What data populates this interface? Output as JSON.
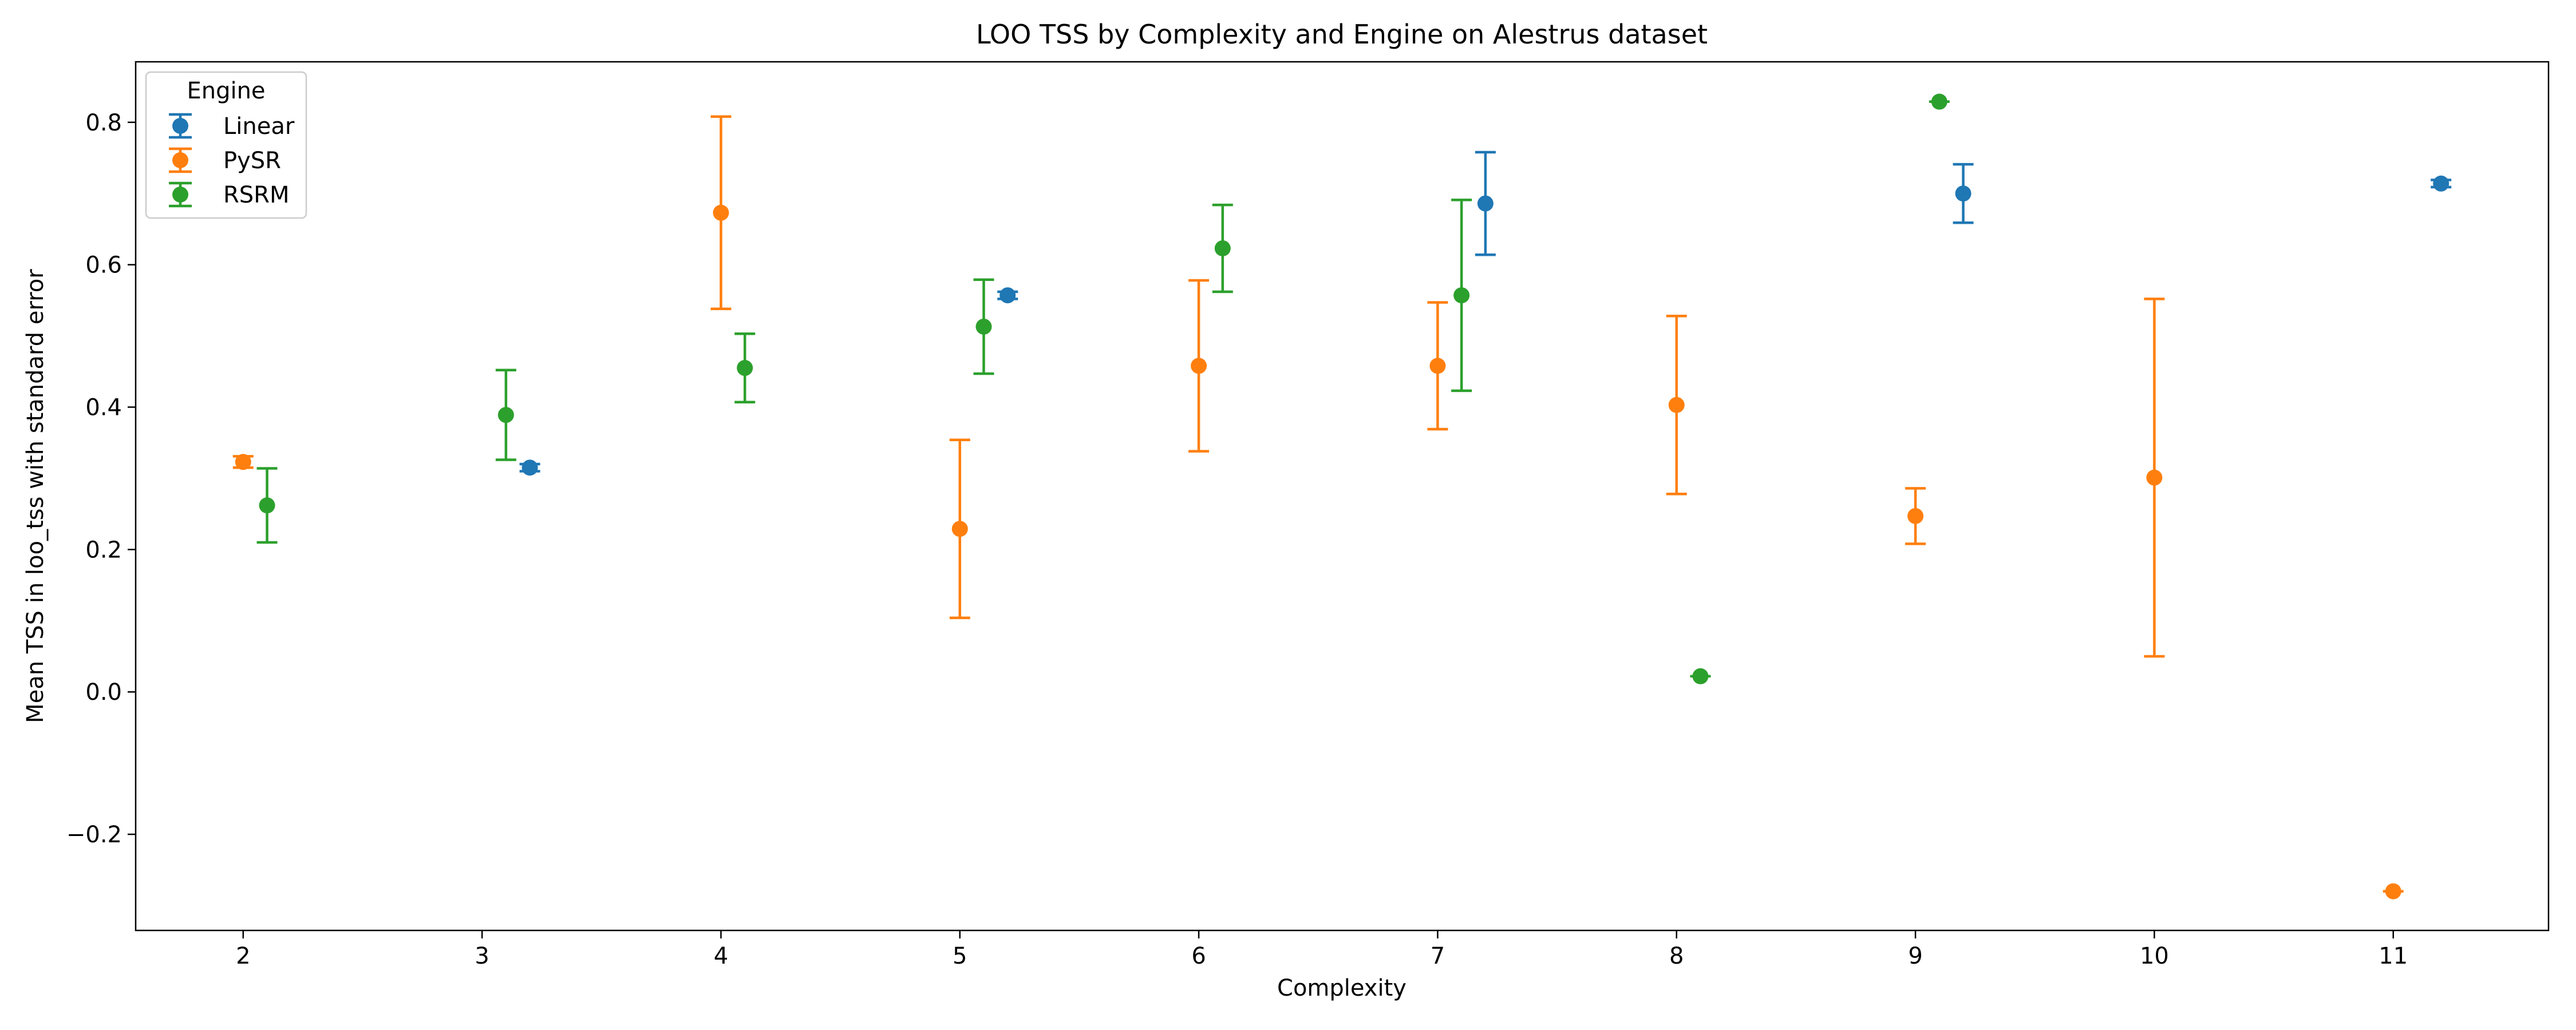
{
  "chart_data": {
    "type": "scatter",
    "title": "LOO TSS by Complexity and Engine on Alestrus dataset",
    "xlabel": "Complexity",
    "ylabel": "Mean TSS in loo_tss with standard error",
    "xlim": [
      1.55,
      11.65
    ],
    "ylim": [
      -0.335,
      0.885
    ],
    "xticks": [
      2,
      3,
      4,
      5,
      6,
      7,
      8,
      9,
      10,
      11
    ],
    "yticks": [
      -0.2,
      0.0,
      0.2,
      0.4,
      0.6,
      0.8
    ],
    "ytick_labels": [
      "−0.2",
      "0.0",
      "0.2",
      "0.4",
      "0.6",
      "0.8"
    ],
    "grid": false,
    "legend": {
      "title": "Engine",
      "placement": "top-left"
    },
    "x_offset_note": "",
    "series": [
      {
        "name": "Linear",
        "color": "#1f77b4",
        "points": [
          {
            "complexity": 3,
            "x": 3.2,
            "y": 0.315,
            "err": 0.005
          },
          {
            "complexity": 5,
            "x": 5.2,
            "y": 0.557,
            "err": 0.005
          },
          {
            "complexity": 7,
            "x": 7.2,
            "y": 0.686,
            "err": 0.072
          },
          {
            "complexity": 9,
            "x": 9.2,
            "y": 0.7,
            "err": 0.041
          },
          {
            "complexity": 11,
            "x": 11.2,
            "y": 0.714,
            "err": 0.005
          }
        ]
      },
      {
        "name": "PySR",
        "color": "#ff7f0e",
        "points": [
          {
            "complexity": 2,
            "x": 2.0,
            "y": 0.323,
            "err": 0.008
          },
          {
            "complexity": 4,
            "x": 4.0,
            "y": 0.673,
            "err": 0.135
          },
          {
            "complexity": 5,
            "x": 5.0,
            "y": 0.229,
            "err": 0.125
          },
          {
            "complexity": 6,
            "x": 6.0,
            "y": 0.458,
            "err": 0.12
          },
          {
            "complexity": 7,
            "x": 7.0,
            "y": 0.458,
            "err": 0.089
          },
          {
            "complexity": 8,
            "x": 8.0,
            "y": 0.403,
            "err": 0.125
          },
          {
            "complexity": 9,
            "x": 9.0,
            "y": 0.247,
            "err": 0.039
          },
          {
            "complexity": 10,
            "x": 10.0,
            "y": 0.301,
            "err": 0.251
          },
          {
            "complexity": 11,
            "x": 11.0,
            "y": -0.28,
            "err": 0
          }
        ]
      },
      {
        "name": "RSRM",
        "color": "#2ca02c",
        "points": [
          {
            "complexity": 2,
            "x": 2.1,
            "y": 0.262,
            "err": 0.052
          },
          {
            "complexity": 3,
            "x": 3.1,
            "y": 0.389,
            "err": 0.063
          },
          {
            "complexity": 4,
            "x": 4.1,
            "y": 0.455,
            "err": 0.048
          },
          {
            "complexity": 5,
            "x": 5.1,
            "y": 0.513,
            "err": 0.066
          },
          {
            "complexity": 6,
            "x": 6.1,
            "y": 0.623,
            "err": 0.061
          },
          {
            "complexity": 7,
            "x": 7.1,
            "y": 0.557,
            "err": 0.134
          },
          {
            "complexity": 8,
            "x": 8.1,
            "y": 0.022,
            "err": 0
          },
          {
            "complexity": 9,
            "x": 9.1,
            "y": 0.829,
            "err": 0
          }
        ]
      }
    ]
  }
}
